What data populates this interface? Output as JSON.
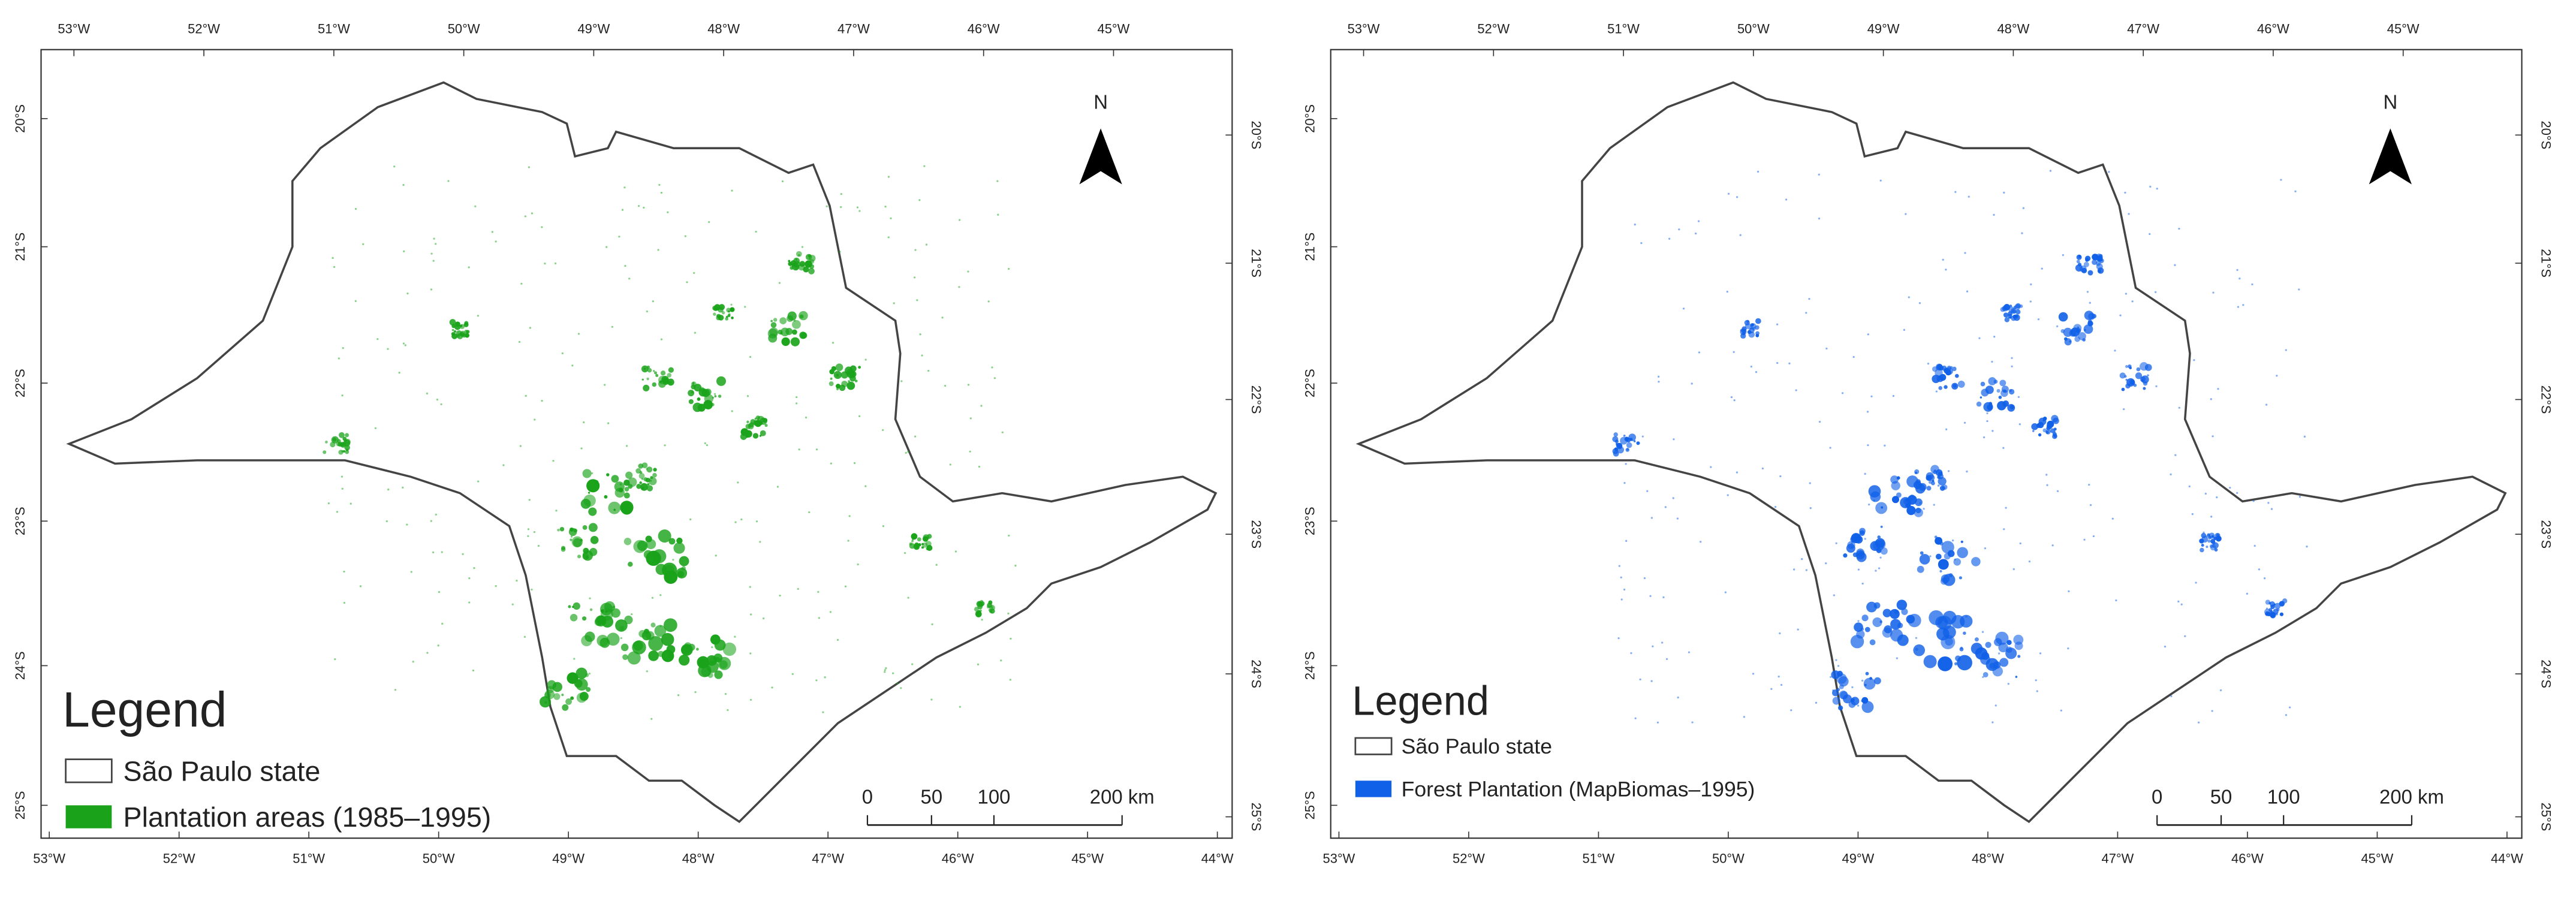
{
  "maps": [
    {
      "top_labels": [
        "53°W",
        "52°W",
        "51°W",
        "50°W",
        "49°W",
        "48°W",
        "47°W",
        "46°W",
        "45°W"
      ],
      "bottom_labels": [
        "53°W",
        "52°W",
        "51°W",
        "50°W",
        "49°W",
        "48°W",
        "47°W",
        "46°W",
        "45°W",
        "44°W"
      ],
      "left_labels": [
        "20°S",
        "21°S",
        "22°S",
        "23°S",
        "24°S",
        "25°S"
      ],
      "right_labels": [
        "20°S",
        "21°S",
        "22°S",
        "23°S",
        "24°S",
        "25°S"
      ],
      "north": "N",
      "legend": {
        "title": "Legend",
        "items": [
          {
            "label": "São Paulo state",
            "color": "#ffffff"
          },
          {
            "label": "Plantation areas (1985–1995)",
            "color": "#1aa31a"
          }
        ]
      },
      "scale_labels": [
        "0",
        "50",
        "100",
        "200 km"
      ]
    },
    {
      "top_labels": [
        "53°W",
        "52°W",
        "51°W",
        "50°W",
        "49°W",
        "48°W",
        "47°W",
        "46°W",
        "45°W"
      ],
      "bottom_labels": [
        "53°W",
        "52°W",
        "51°W",
        "50°W",
        "49°W",
        "48°W",
        "47°W",
        "46°W",
        "45°W",
        "44°W"
      ],
      "left_labels": [
        "20°S",
        "21°S",
        "22°S",
        "23°S",
        "24°S",
        "25°S"
      ],
      "right_labels": [
        "20°S",
        "21°S",
        "22°S",
        "23°S",
        "24°S",
        "25°S"
      ],
      "north": "N",
      "legend": {
        "title": "Legend",
        "items": [
          {
            "label": "São Paulo state",
            "color": "#ffffff"
          },
          {
            "label": "Forest Plantation (MapBiomas–1995)",
            "color": "#1060e8"
          }
        ]
      },
      "scale_labels": [
        "0",
        "50",
        "100",
        "200 km"
      ]
    }
  ]
}
